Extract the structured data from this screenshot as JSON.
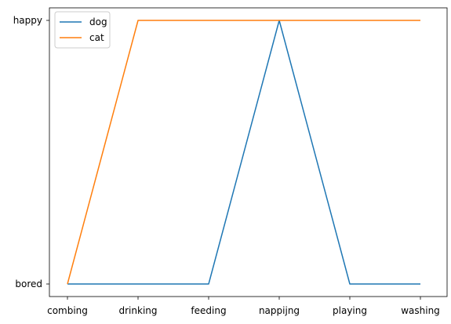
{
  "chart_data": {
    "type": "line",
    "title": "",
    "xlabel": "",
    "ylabel": "",
    "categories": [
      "combing",
      "drinking",
      "feeding",
      "nappijng",
      "playing",
      "washing"
    ],
    "y_categories": [
      "bored",
      "happy"
    ],
    "series": [
      {
        "name": "dog",
        "color": "#1f77b4",
        "values": [
          "bored",
          "bored",
          "bored",
          "happy",
          "bored",
          "bored"
        ]
      },
      {
        "name": "cat",
        "color": "#ff7f0e",
        "values": [
          "bored",
          "happy",
          "happy",
          "happy",
          "happy",
          "happy"
        ]
      }
    ],
    "grid": false,
    "legend_position": "upper-left"
  }
}
